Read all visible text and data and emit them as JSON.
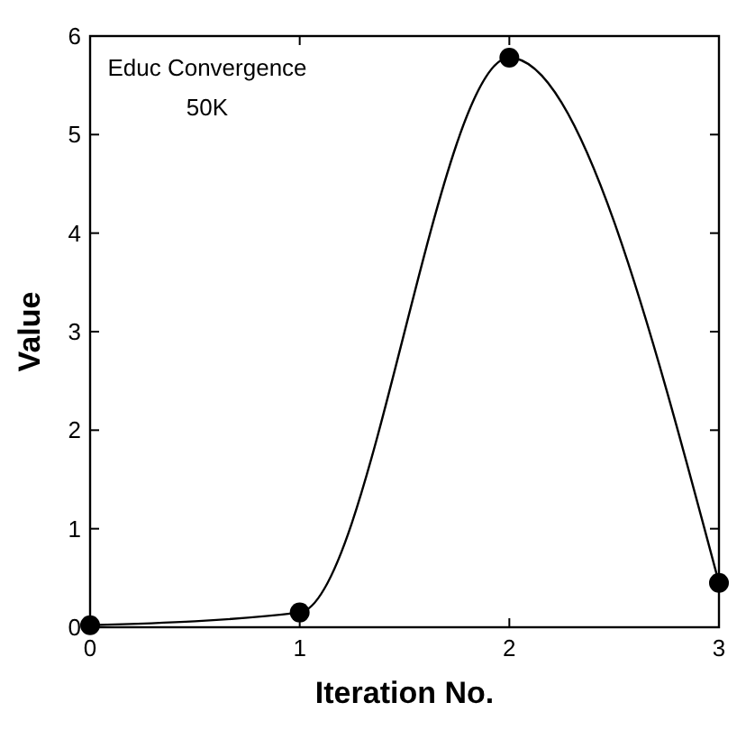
{
  "chart_data": {
    "type": "line",
    "xlabel": "Iteration No.",
    "ylabel": "Value",
    "annotations": [
      "Educ Convergence\n50K"
    ],
    "x": [
      0,
      1,
      2,
      3
    ],
    "series": [
      {
        "color": "#000000",
        "values": [
          0.02,
          0.15,
          5.78,
          0.45
        ]
      }
    ],
    "xlim": [
      0,
      3
    ],
    "ylim": [
      0,
      6
    ],
    "xticks": [
      0,
      1,
      2,
      3
    ],
    "yticks": [
      0,
      1,
      2,
      3,
      4,
      5,
      6
    ],
    "marker": "circle",
    "line_style": "solid"
  }
}
